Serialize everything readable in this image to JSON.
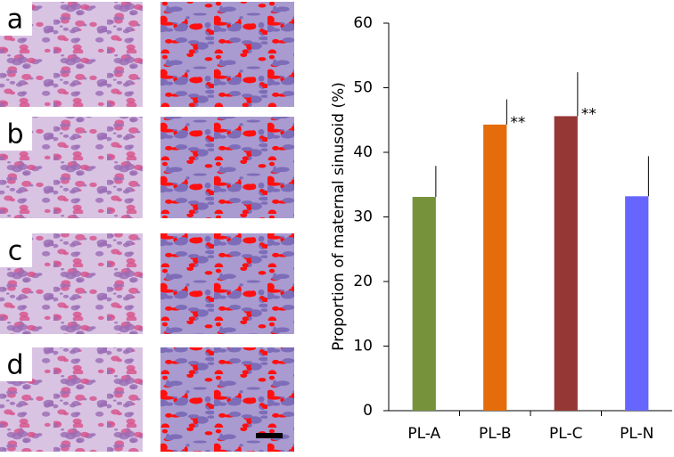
{
  "panel_labels": [
    "a",
    "b",
    "c",
    "d"
  ],
  "chart_data": {
    "type": "bar",
    "y_label": "Proportion of maternal sinusoid (%)",
    "categories": [
      "PL-A",
      "PL-B",
      "PL-C",
      "PL-N"
    ],
    "values": [
      33.1,
      44.3,
      45.6,
      33.2
    ],
    "errors": [
      4.8,
      3.9,
      6.8,
      6.2
    ],
    "value_annotations": [
      null,
      "**",
      "**",
      null
    ],
    "colors": [
      "#76933c",
      "#e46c0a",
      "#953735",
      "#6666ff"
    ],
    "ylim": [
      0,
      60
    ],
    "yticks": [
      0,
      10,
      20,
      30,
      40,
      50,
      60
    ],
    "grid": false
  }
}
